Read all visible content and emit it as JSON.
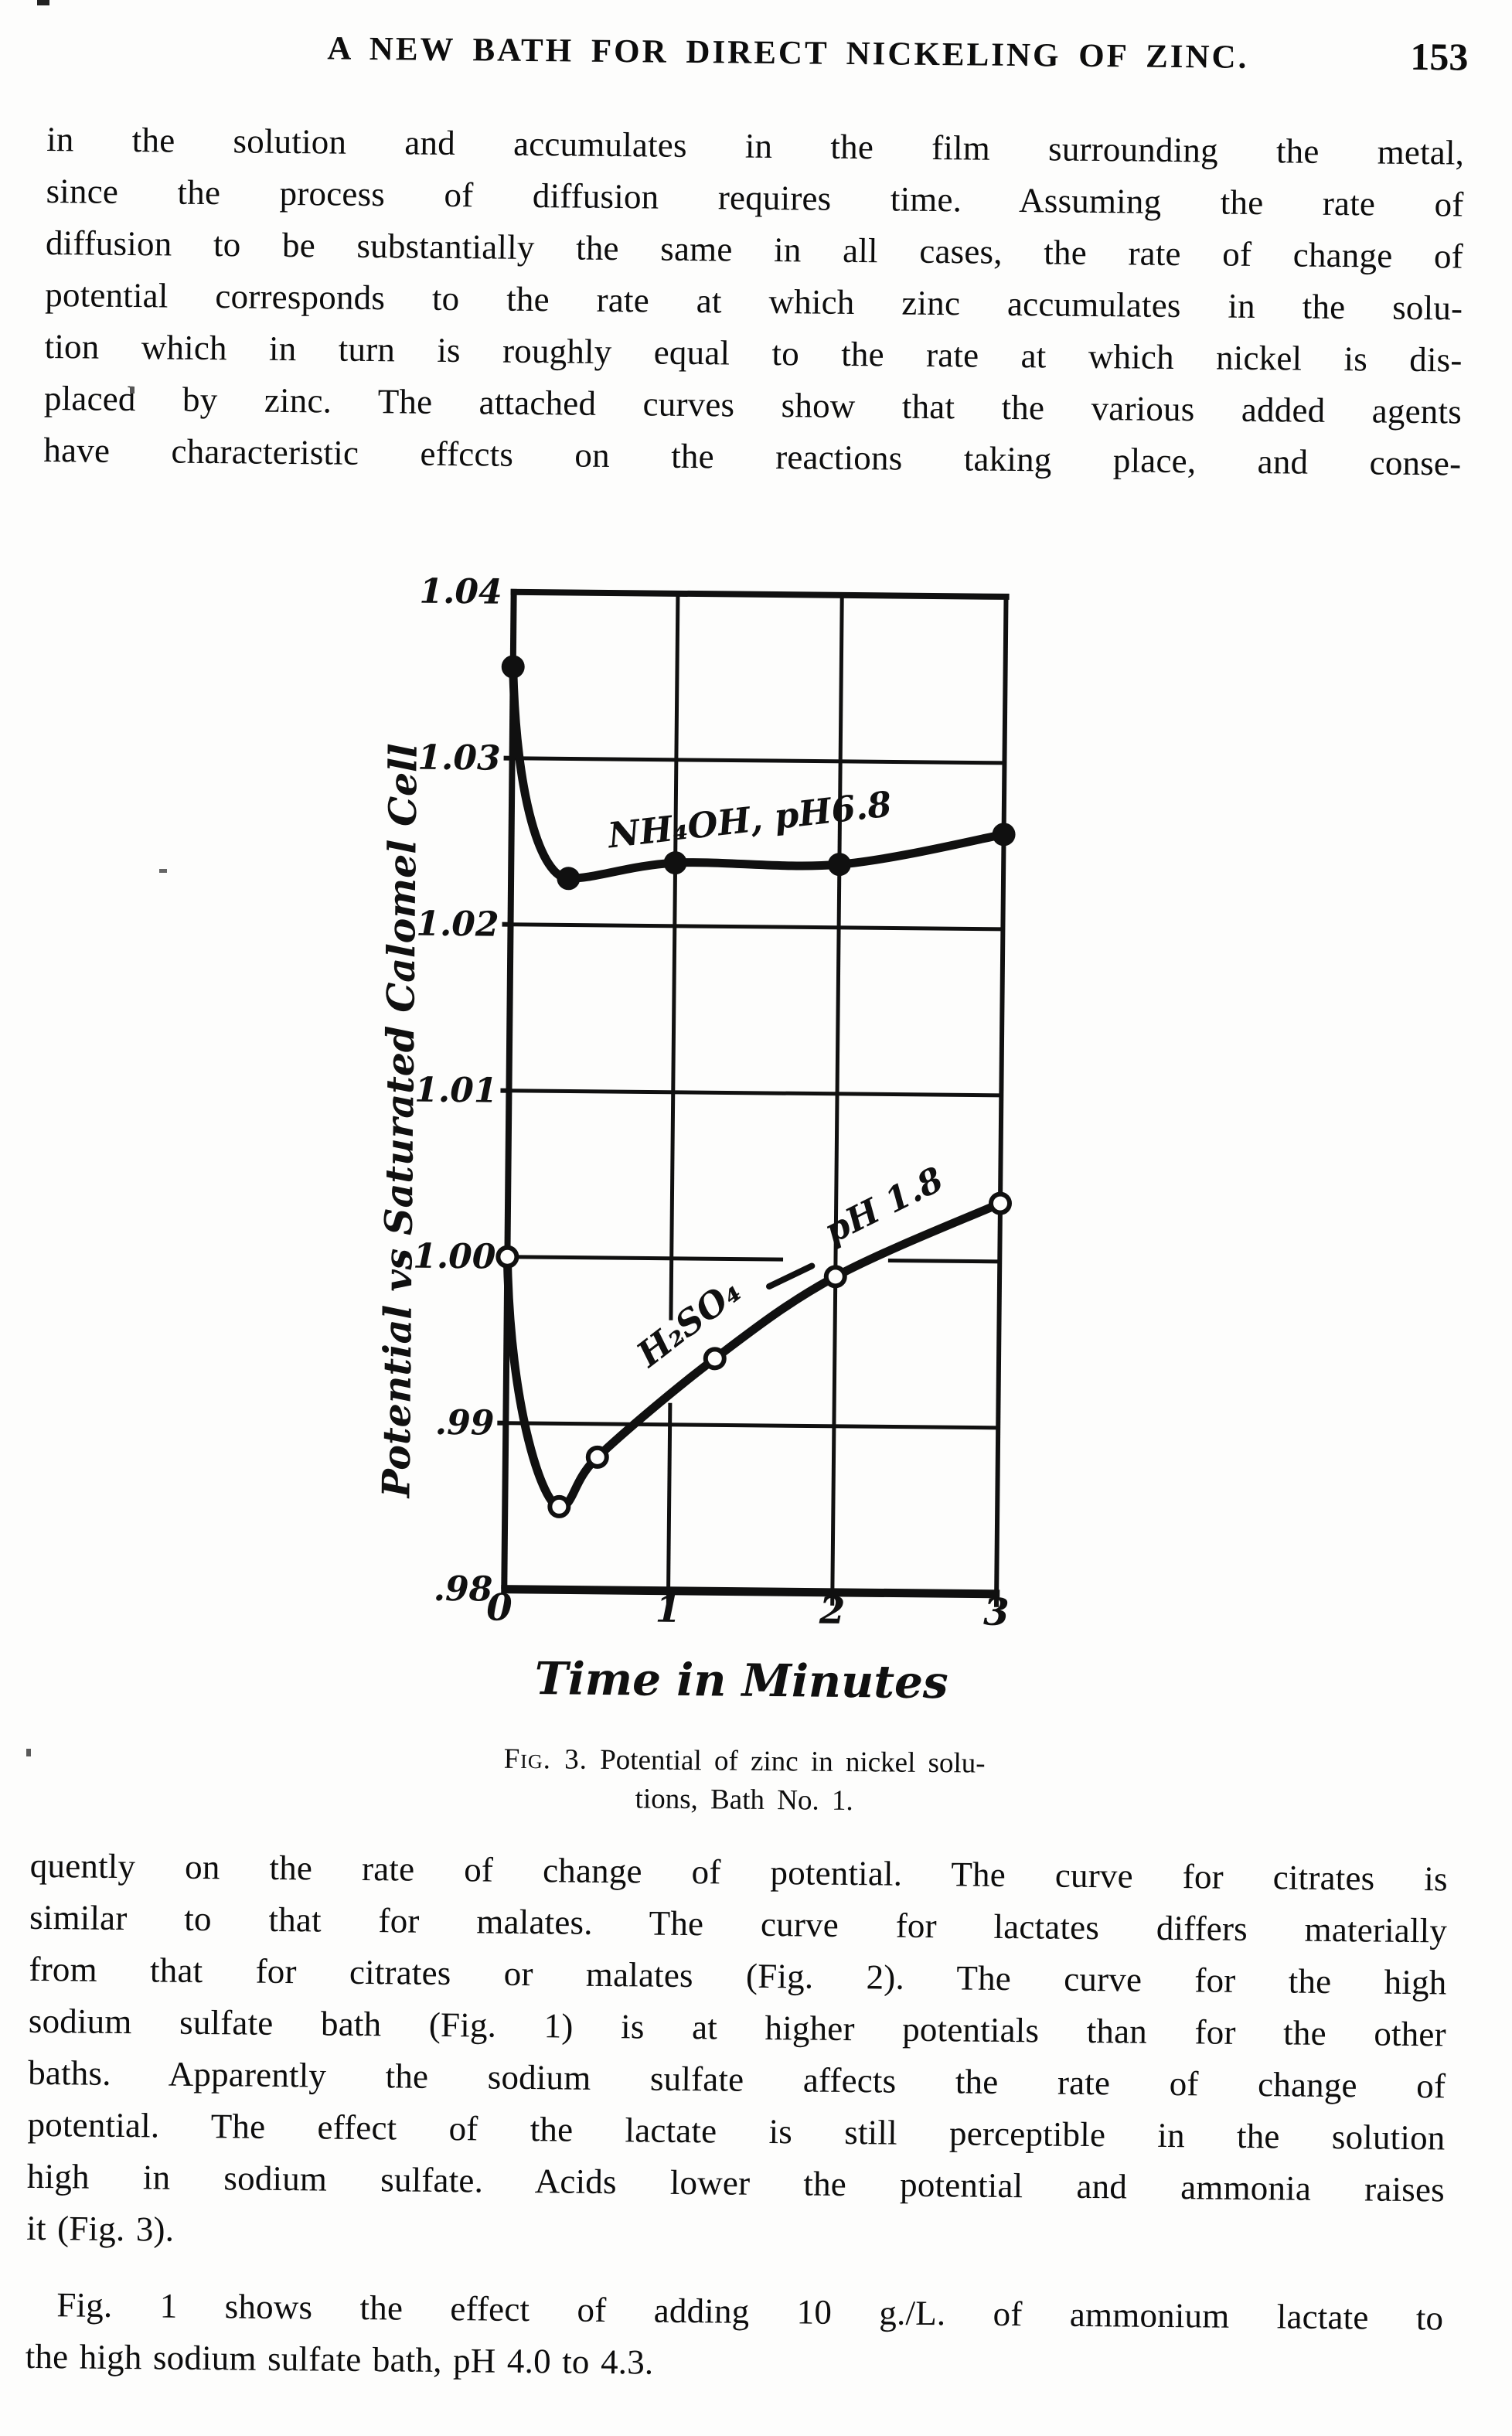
{
  "header": {
    "title": "A NEW BATH FOR DIRECT NICKELING OF ZINC.",
    "page_number": "153"
  },
  "body": {
    "para1_lines": [
      "in the solution and accumulates in the film surrounding the metal,",
      "since the process of diffusion requires time. Assuming the rate of",
      "diffusion to be substantially the same in all cases, the rate of change of",
      "potential corresponds to the rate at which zinc accumulates in the solu-",
      "tion which in turn is roughly equal to the rate at which nickel is dis-",
      "placed by zinc. The attached curves show that the various added agents",
      "have characteristic effccts on the reactions taking place, and conse-"
    ],
    "para2_lines": [
      "quently on the rate of change of potential. The curve for citrates is",
      "similar to that for malates. The curve for lactates differs materially",
      "from that for citrates or malates (Fig. 2). The curve for the high",
      "sodium sulfate bath (Fig. 1) is at higher potentials than for the other",
      "baths. Apparently the sodium sulfate affects the rate of change of",
      "potential. The effect of the lactate is still perceptible in the solution",
      "high in sodium sulfate. Acids lower the potential and ammonia raises",
      "it (Fig. 3)."
    ],
    "para3_lines": [
      "Fig. 1 shows the effect of adding 10 g./L. of ammonium lactate to",
      "the high sodium sulfate bath, pH 4.0 to 4.3."
    ]
  },
  "figure": {
    "caption_fig_label": "Fig. 3.",
    "caption_line1_rest": "Potential of zinc in nickel solu-",
    "caption_line2": "tions, Bath No. 1."
  },
  "chart_data": {
    "type": "line",
    "title": "",
    "xlabel": "Time in Minutes",
    "ylabel": "Potential vs Saturated Calomel Cell",
    "xlim": [
      0,
      3
    ],
    "ylim": [
      0.98,
      1.04
    ],
    "x_ticks": [
      "0",
      "1",
      "2",
      "3"
    ],
    "y_ticks": [
      "1.04",
      "1.03",
      "1.02",
      "1.01",
      "1.00",
      ".99",
      ".98"
    ],
    "grid": true,
    "legend_position": "inline-labels",
    "series": [
      {
        "name": "NH₄OH, pH6.8",
        "marker": "filled-circle",
        "x": [
          0,
          0.35,
          1.0,
          2.0,
          3.0
        ],
        "y": [
          1.0355,
          1.0228,
          1.0238,
          1.0238,
          1.0257
        ]
      },
      {
        "name": "H₂SO₄ — pH 1.8",
        "marker": "open-circle",
        "x": [
          0,
          0.33,
          0.56,
          1.27,
          2.0,
          3.0
        ],
        "y": [
          1.0,
          0.985,
          0.988,
          0.994,
          0.999,
          1.0035
        ]
      }
    ],
    "inline_labels": [
      {
        "text": "NH₄OH, pH6.8",
        "series": "NH₄OH, pH6.8"
      },
      {
        "text": "H₂SO₄",
        "series": "H₂SO₄ — pH 1.8"
      },
      {
        "text": "pH 1.8",
        "series": "H₂SO₄ — pH 1.8"
      }
    ]
  }
}
